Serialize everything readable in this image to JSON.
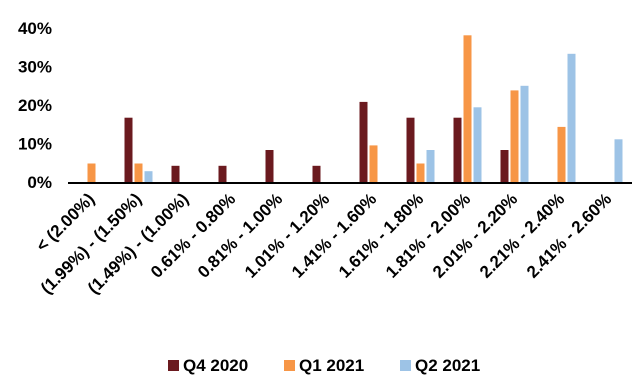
{
  "chart_data": {
    "type": "bar",
    "title": "",
    "xlabel": "",
    "ylabel": "",
    "ylim": [
      0,
      40
    ],
    "y_ticks": [
      0,
      10,
      20,
      30,
      40
    ],
    "y_tick_labels": [
      "0%",
      "10%",
      "20%",
      "30%",
      "40%"
    ],
    "y_unit": "%",
    "grid": false,
    "legend_position": "bottom",
    "categories": [
      "< (2.00%)",
      "(1.99%) - (1.50%)",
      "(1.49%) - (1.00%)",
      "0.61% - 0.80%",
      "0.81% - 1.00%",
      "1.01% - 1.20%",
      "1.41% - 1.60%",
      "1.61% - 1.80%",
      "1.81% - 2.00%",
      "2.01% - 2.20%",
      "2.21% - 2.40%",
      "2.41% - 2.60%"
    ],
    "series": [
      {
        "name": "Q4 2020",
        "color": "#6b1a1f",
        "values": [
          0,
          16.7,
          4.2,
          4.2,
          8.3,
          4.2,
          20.8,
          16.7,
          16.7,
          8.3,
          0,
          0
        ]
      },
      {
        "name": "Q1 2021",
        "color": "#f79646",
        "values": [
          4.8,
          4.8,
          0,
          0,
          0,
          0,
          9.5,
          4.8,
          38.1,
          23.8,
          14.3,
          0
        ]
      },
      {
        "name": "Q2 2021",
        "color": "#9dc3e6",
        "values": [
          0,
          2.8,
          0,
          0,
          0,
          0,
          0,
          8.3,
          19.4,
          25.0,
          33.3,
          11.1
        ]
      }
    ]
  }
}
